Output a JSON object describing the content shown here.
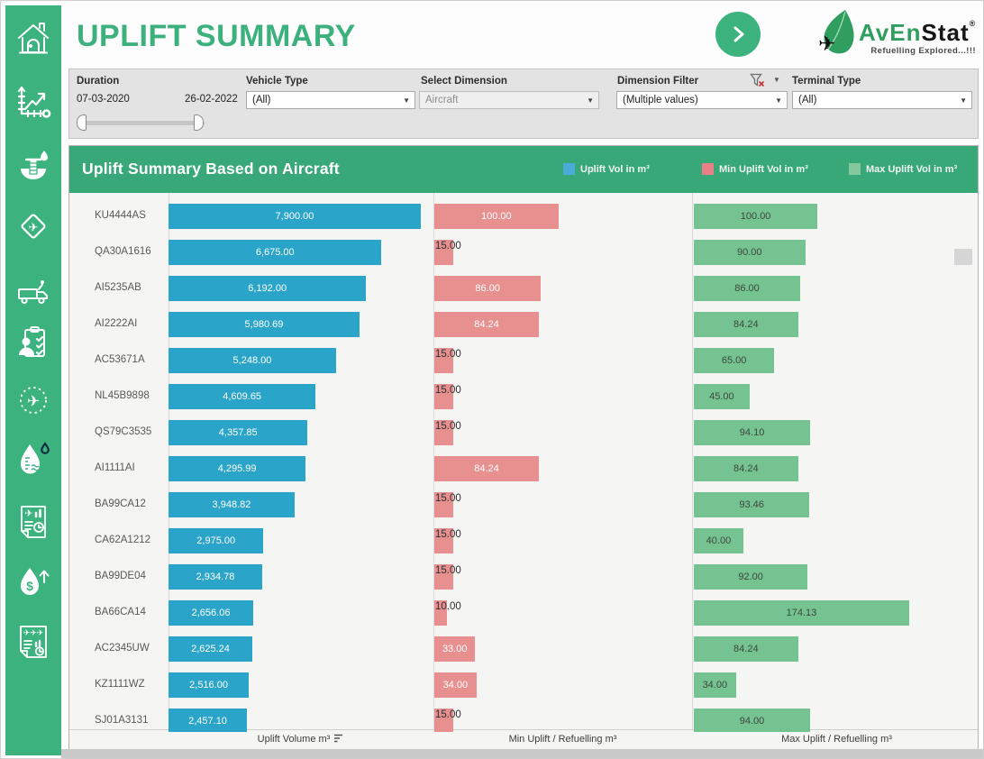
{
  "header": {
    "title": "UPLIFT SUMMARY",
    "logo": {
      "brand_green": "AvEn",
      "brand_black": "Stat",
      "registered": "®",
      "tagline": "Refuelling  Explored...!!!"
    }
  },
  "sidebar": {
    "icons": [
      "home-icon",
      "trend-chart-icon",
      "fuel-hydrant-icon",
      "airplane-sign-icon",
      "refueller-truck-icon",
      "operator-checklist-icon",
      "airplane-route-icon",
      "fuel-gauge-icon",
      "flight-report-icon",
      "fuel-cost-icon",
      "fleet-report-icon"
    ]
  },
  "filters": {
    "duration": {
      "label": "Duration",
      "start": "07-03-2020",
      "end": "26-02-2022"
    },
    "vehicle_type": {
      "label": "Vehicle Type",
      "value": "(All)"
    },
    "select_dimension": {
      "label": "Select Dimension",
      "value": "Aircraft"
    },
    "dimension_filter": {
      "label": "Dimension Filter",
      "value": "(Multiple values)"
    },
    "terminal_type": {
      "label": "Terminal Type",
      "value": "(All)"
    }
  },
  "colors": {
    "accent_green": "#3CB27E",
    "titlebar_green": "#38A878",
    "bar_blue": "#2BA4C9",
    "bar_pink": "#E89090",
    "bar_green": "#75C391"
  },
  "chart": {
    "title": "Uplift Summary Based on Aircraft",
    "legend": [
      {
        "label": "Uplift Vol in m³",
        "color": "#49ABD6"
      },
      {
        "label": "Min Uplift Vol in m³",
        "color": "#E87F84"
      },
      {
        "label": "Max Uplift Vol in m³",
        "color": "#85C89C"
      }
    ],
    "axes": [
      {
        "label": "Uplift Volume m³"
      },
      {
        "label": "Min Uplift / Refuelling m³"
      },
      {
        "label": "Max Uplift / Refuelling m³"
      }
    ]
  },
  "chart_data": {
    "type": "bar",
    "orientation": "horizontal",
    "title": "Uplift Summary Based on Aircraft",
    "categories": [
      "KU4444AS",
      "QA30A1616",
      "AI5235AB",
      "AI2222AI",
      "AC53671A",
      "NL45B9898",
      "QS79C3535",
      "AI1111AI",
      "BA99CA12",
      "CA62A1212",
      "BA99DE04",
      "BA66CA14",
      "AC2345UW",
      "KZ1111WZ",
      "SJ01A3131"
    ],
    "series": [
      {
        "name": "Uplift Vol in m³",
        "bar_name": "uplift-bar",
        "color": "#2BA4C9",
        "label_color": "#ffffff",
        "outside_threshold": null,
        "axis_max": 8270,
        "values": [
          7900,
          6675,
          6192,
          5980.69,
          5248,
          4609.65,
          4357.85,
          4295.99,
          3948.82,
          2975,
          2934.78,
          2656.06,
          2625.24,
          2516,
          2457.1
        ],
        "labels": [
          "7,900.00",
          "6,675.00",
          "6,192.00",
          "5,980.69",
          "5,248.00",
          "4,609.65",
          "4,357.85",
          "4,295.99",
          "3,948.82",
          "2,975.00",
          "2,934.78",
          "2,656.06",
          "2,625.24",
          "2,516.00",
          "2,457.10"
        ]
      },
      {
        "name": "Min Uplift Vol in m³",
        "bar_name": "min-uplift-bar",
        "color": "#E89090",
        "label_color": "#ffffff",
        "outside_threshold": 30,
        "axis_max": 207,
        "values": [
          100,
          15,
          86,
          84.24,
          15,
          15,
          15,
          84.24,
          15,
          15,
          15,
          10,
          33,
          34,
          15
        ],
        "labels": [
          "100.00",
          "15.00",
          "86.00",
          "84.24",
          "15.00",
          "15.00",
          "15.00",
          "84.24",
          "15.00",
          "15.00",
          "15.00",
          "10.00",
          "33.00",
          "34.00",
          "15.00"
        ]
      },
      {
        "name": "Max Uplift Vol in m³",
        "bar_name": "max-uplift-bar",
        "color": "#75C391",
        "label_color": "#3e463f",
        "outside_threshold": null,
        "axis_max": 231,
        "values": [
          100,
          90,
          86,
          84.24,
          65,
          45,
          94.1,
          84.24,
          93.46,
          40,
          92,
          174.13,
          84.24,
          34,
          94
        ],
        "labels": [
          "100.00",
          "90.00",
          "86.00",
          "84.24",
          "65.00",
          "45.00",
          "94.10",
          "84.24",
          "93.46",
          "40.00",
          "92.00",
          "174.13",
          "84.24",
          "34.00",
          "94.00"
        ]
      }
    ]
  }
}
